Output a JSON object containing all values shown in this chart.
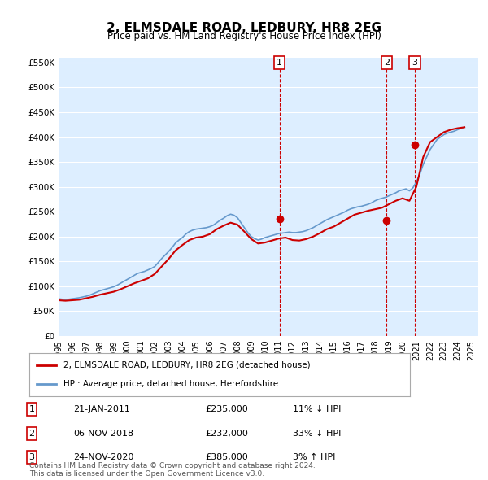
{
  "title": "2, ELMSDALE ROAD, LEDBURY, HR8 2EG",
  "subtitle": "Price paid vs. HM Land Registry's House Price Index (HPI)",
  "hpi_color": "#6699cc",
  "price_color": "#cc0000",
  "vline_color": "#cc0000",
  "marker_color": "#cc0000",
  "background_color": "#ddeeff",
  "ylim": [
    0,
    560000
  ],
  "yticks": [
    0,
    50000,
    100000,
    150000,
    200000,
    250000,
    300000,
    350000,
    400000,
    450000,
    500000,
    550000
  ],
  "ytick_labels": [
    "£0",
    "£50K",
    "£100K",
    "£150K",
    "£200K",
    "£250K",
    "£300K",
    "£350K",
    "£400K",
    "£450K",
    "£500K",
    "£550K"
  ],
  "xlim_start": 1995.0,
  "xlim_end": 2025.5,
  "xtick_years": [
    1995,
    1996,
    1997,
    1998,
    1999,
    2000,
    2001,
    2002,
    2003,
    2004,
    2005,
    2006,
    2007,
    2008,
    2009,
    2010,
    2011,
    2012,
    2013,
    2014,
    2015,
    2016,
    2017,
    2018,
    2019,
    2020,
    2021,
    2022,
    2023,
    2024,
    2025
  ],
  "sales": [
    {
      "year": 2011.05,
      "price": 235000,
      "label": "1"
    },
    {
      "year": 2018.85,
      "price": 232000,
      "label": "2"
    },
    {
      "year": 2020.9,
      "price": 385000,
      "label": "3"
    }
  ],
  "sale_table": [
    {
      "num": "1",
      "date": "21-JAN-2011",
      "price": "£235,000",
      "hpi": "11% ↓ HPI"
    },
    {
      "num": "2",
      "date": "06-NOV-2018",
      "price": "£232,000",
      "hpi": "33% ↓ HPI"
    },
    {
      "num": "3",
      "date": "24-NOV-2020",
      "price": "£385,000",
      "hpi": "3% ↑ HPI"
    }
  ],
  "legend_entries": [
    {
      "label": "2, ELMSDALE ROAD, LEDBURY, HR8 2EG (detached house)",
      "color": "#cc0000"
    },
    {
      "label": "HPI: Average price, detached house, Herefordshire",
      "color": "#6699cc"
    }
  ],
  "footnote": "Contains HM Land Registry data © Crown copyright and database right 2024.\nThis data is licensed under the Open Government Licence v3.0.",
  "hpi_data_x": [
    1995.0,
    1995.25,
    1995.5,
    1995.75,
    1996.0,
    1996.25,
    1996.5,
    1996.75,
    1997.0,
    1997.25,
    1997.5,
    1997.75,
    1998.0,
    1998.25,
    1998.5,
    1998.75,
    1999.0,
    1999.25,
    1999.5,
    1999.75,
    2000.0,
    2000.25,
    2000.5,
    2000.75,
    2001.0,
    2001.25,
    2001.5,
    2001.75,
    2002.0,
    2002.25,
    2002.5,
    2002.75,
    2003.0,
    2003.25,
    2003.5,
    2003.75,
    2004.0,
    2004.25,
    2004.5,
    2004.75,
    2005.0,
    2005.25,
    2005.5,
    2005.75,
    2006.0,
    2006.25,
    2006.5,
    2006.75,
    2007.0,
    2007.25,
    2007.5,
    2007.75,
    2008.0,
    2008.25,
    2008.5,
    2008.75,
    2009.0,
    2009.25,
    2009.5,
    2009.75,
    2010.0,
    2010.25,
    2010.5,
    2010.75,
    2011.0,
    2011.25,
    2011.5,
    2011.75,
    2012.0,
    2012.25,
    2012.5,
    2012.75,
    2013.0,
    2013.25,
    2013.5,
    2013.75,
    2014.0,
    2014.25,
    2014.5,
    2014.75,
    2015.0,
    2015.25,
    2015.5,
    2015.75,
    2016.0,
    2016.25,
    2016.5,
    2016.75,
    2017.0,
    2017.25,
    2017.5,
    2017.75,
    2018.0,
    2018.25,
    2018.5,
    2018.75,
    2019.0,
    2019.25,
    2019.5,
    2019.75,
    2020.0,
    2020.25,
    2020.5,
    2020.75,
    2021.0,
    2021.25,
    2021.5,
    2021.75,
    2022.0,
    2022.25,
    2022.5,
    2022.75,
    2023.0,
    2023.25,
    2023.5,
    2023.75,
    2024.0,
    2024.25,
    2024.5
  ],
  "hpi_data_y": [
    75000,
    74000,
    73500,
    74000,
    75000,
    76000,
    77000,
    78500,
    80000,
    82000,
    85000,
    88000,
    91000,
    93000,
    95000,
    97000,
    99000,
    102000,
    106000,
    110000,
    114000,
    118000,
    122000,
    126000,
    128000,
    130000,
    133000,
    136000,
    140000,
    148000,
    156000,
    163000,
    170000,
    178000,
    187000,
    193000,
    198000,
    205000,
    210000,
    213000,
    215000,
    216000,
    217000,
    218000,
    220000,
    223000,
    228000,
    233000,
    237000,
    242000,
    245000,
    243000,
    238000,
    228000,
    218000,
    208000,
    200000,
    196000,
    193000,
    195000,
    198000,
    200000,
    202000,
    204000,
    206000,
    207000,
    208000,
    209000,
    208000,
    208000,
    209000,
    210000,
    212000,
    215000,
    218000,
    222000,
    226000,
    230000,
    234000,
    237000,
    240000,
    243000,
    246000,
    249000,
    253000,
    256000,
    258000,
    260000,
    261000,
    263000,
    265000,
    268000,
    272000,
    275000,
    277000,
    279000,
    282000,
    285000,
    288000,
    292000,
    294000,
    296000,
    292000,
    298000,
    310000,
    325000,
    345000,
    360000,
    375000,
    385000,
    395000,
    400000,
    405000,
    408000,
    410000,
    412000,
    415000,
    418000,
    420000
  ],
  "price_data_x": [
    1995.0,
    1995.5,
    1996.0,
    1996.5,
    1997.0,
    1997.5,
    1998.0,
    1998.5,
    1999.0,
    1999.5,
    2000.0,
    2000.5,
    2001.0,
    2001.5,
    2002.0,
    2002.5,
    2003.0,
    2003.5,
    2004.0,
    2004.5,
    2005.0,
    2005.5,
    2006.0,
    2006.5,
    2007.0,
    2007.5,
    2008.0,
    2008.5,
    2009.0,
    2009.5,
    2010.0,
    2010.5,
    2011.0,
    2011.5,
    2012.0,
    2012.5,
    2013.0,
    2013.5,
    2014.0,
    2014.5,
    2015.0,
    2015.5,
    2016.0,
    2016.5,
    2017.0,
    2017.5,
    2018.0,
    2018.5,
    2019.0,
    2019.5,
    2020.0,
    2020.5,
    2021.0,
    2021.5,
    2022.0,
    2022.5,
    2023.0,
    2023.5,
    2024.0,
    2024.5
  ],
  "price_data_y": [
    72000,
    71000,
    72000,
    73000,
    76000,
    79000,
    83000,
    86000,
    89000,
    94000,
    100000,
    106000,
    111000,
    116000,
    125000,
    140000,
    155000,
    172000,
    183000,
    193000,
    198000,
    200000,
    205000,
    215000,
    222000,
    228000,
    224000,
    210000,
    195000,
    186000,
    188000,
    192000,
    196000,
    198000,
    193000,
    192000,
    195000,
    200000,
    207000,
    215000,
    220000,
    228000,
    236000,
    244000,
    248000,
    252000,
    255000,
    258000,
    265000,
    272000,
    277000,
    272000,
    300000,
    360000,
    390000,
    400000,
    410000,
    415000,
    418000,
    420000
  ]
}
